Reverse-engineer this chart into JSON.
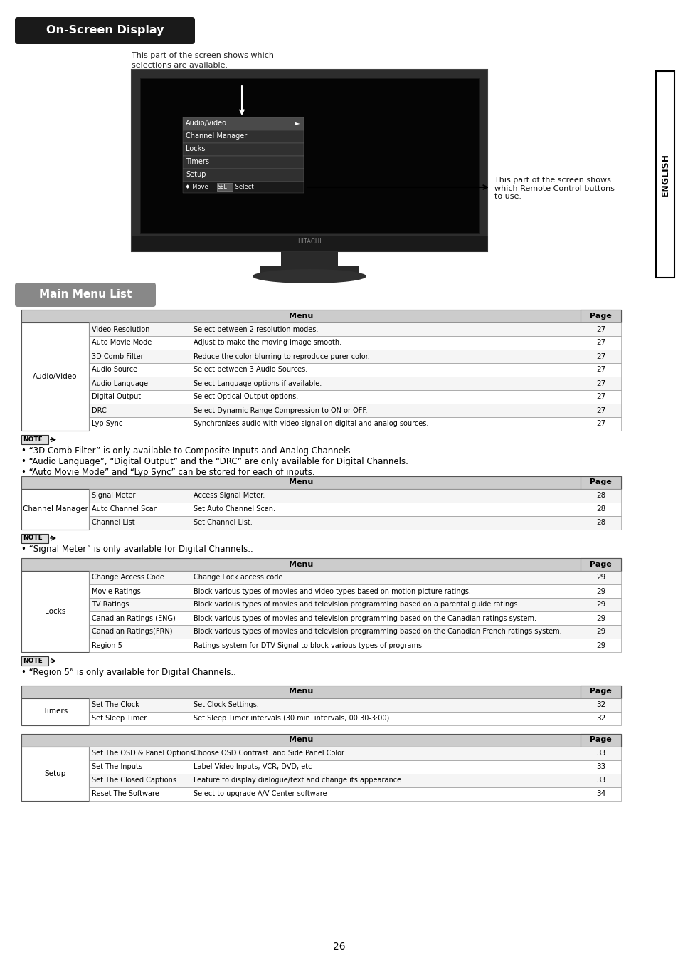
{
  "page_bg": "#ffffff",
  "title_section": "On-Screen Display",
  "title_bg": "#1a1a1a",
  "title_color": "#ffffff",
  "section2": "Main Menu List",
  "section2_bg": "#888888",
  "section2_color": "#ffffff",
  "english_sidebar": "ENGLISH",
  "table_header_bg": "#cccccc",
  "table_border": "#555555",
  "tables": [
    {
      "section_label": "Audio/Video",
      "rows": [
        [
          "Video Resolution",
          "Select between 2 resolution modes.",
          "27"
        ],
        [
          "Auto Movie Mode",
          "Adjust to make the moving image smooth.",
          "27"
        ],
        [
          "3D Comb Filter",
          "Reduce the color blurring to reproduce purer color.",
          "27"
        ],
        [
          "Audio Source",
          "Select between 3 Audio Sources.",
          "27"
        ],
        [
          "Audio Language",
          "Select Language options if available.",
          "27"
        ],
        [
          "Digital Output",
          "Select Optical Output options.",
          "27"
        ],
        [
          "DRC",
          "Select Dynamic Range Compression to ON or OFF.",
          "27"
        ],
        [
          "Lyp Sync",
          "Synchronizes audio with video signal on digital and analog sources.",
          "27"
        ]
      ]
    },
    {
      "section_label": "Channel Manager",
      "rows": [
        [
          "Signal Meter",
          "Access Signal Meter.",
          "28"
        ],
        [
          "Auto Channel Scan",
          "Set Auto Channel Scan.",
          "28"
        ],
        [
          "Channel List",
          "Set Channel List.",
          "28"
        ]
      ]
    },
    {
      "section_label": "Locks",
      "rows": [
        [
          "Change Access Code",
          "Change Lock access code.",
          "29"
        ],
        [
          "Movie Ratings",
          "Block various types of movies and video types based on motion picture ratings.",
          "29"
        ],
        [
          "TV Ratings",
          "Block various types of movies and television programming based on a parental guide ratings.",
          "29"
        ],
        [
          "Canadian Ratings (ENG)",
          "Block various types of movies and television programming based on the Canadian ratings system.",
          "29"
        ],
        [
          "Canadian Ratings(FRN)",
          "Block various types of movies and television programming based on the Canadian French ratings system.",
          "29"
        ],
        [
          "Region 5",
          "Ratings system for DTV Signal to block various types of programs.",
          "29"
        ]
      ]
    },
    {
      "section_label": "Timers",
      "rows": [
        [
          "Set The Clock",
          "Set Clock Settings.",
          "32"
        ],
        [
          "Set Sleep Timer",
          "Set Sleep Timer intervals (30 min. intervals, 00:30-3:00).",
          "32"
        ]
      ]
    },
    {
      "section_label": "Setup",
      "rows": [
        [
          "Set The OSD & Panel Options",
          "Choose OSD Contrast. and Side Panel Color.",
          "33"
        ],
        [
          "Set The Inputs",
          "Label Video Inputs, VCR, DVD, etc",
          "33"
        ],
        [
          "Set The Closed Captions",
          "Feature to display dialogue/text and change its appearance.",
          "33"
        ],
        [
          "Reset The Software",
          "Select to upgrade A/V Center software",
          "34"
        ]
      ]
    }
  ],
  "notes": [
    "• “3D Comb Filter” is only available to Composite Inputs and Analog Channels.\n• “Audio Language”, “Digital Output” and the “DRC” are only available for Digital Channels.\n• “Auto Movie Mode” and “Lyp Sync” can be stored for each of inputs.",
    "• “Signal Meter” is only available for Digital Channels..",
    "• “Region 5” is only available for Digital Channels..",
    "",
    ""
  ],
  "page_number": "26",
  "tv_menu_items": [
    "Audio/Video",
    "Channel Manager",
    "Locks",
    "Timers",
    "Setup"
  ]
}
